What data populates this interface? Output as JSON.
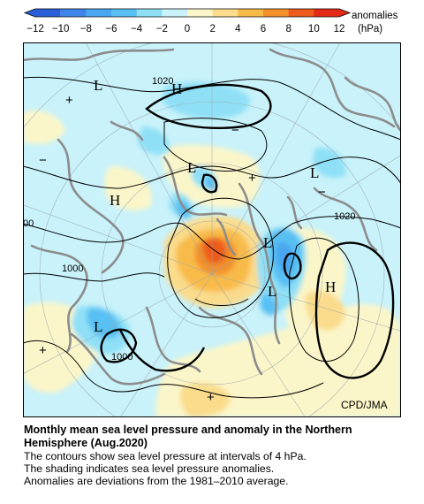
{
  "legend": {
    "ticks": [
      "−12",
      "−10",
      "−8",
      "−6",
      "−4",
      "−2",
      "0",
      "2",
      "4",
      "6",
      "8",
      "10",
      "12"
    ],
    "bins": [
      -12,
      -10,
      -8,
      -6,
      -4,
      -2,
      0,
      2,
      4,
      6,
      8,
      10,
      12
    ],
    "colors": [
      "#2a5fd9",
      "#3f85ea",
      "#49a6f0",
      "#58c0f3",
      "#8fe0f7",
      "#c9f2fa",
      "#fbf6c9",
      "#fadc8c",
      "#f8bb4a",
      "#f3902a",
      "#ed5b1d",
      "#e32b18"
    ],
    "label": "anomalies",
    "unit": "(hPa)"
  },
  "map": {
    "credit": "CPD/JMA",
    "pressure_labels": [
      "1020",
      "1020",
      "1000",
      "1000",
      "00"
    ],
    "systems": [
      {
        "symbol": "L"
      },
      {
        "symbol": "H"
      },
      {
        "symbol": "L"
      },
      {
        "symbol": "H"
      },
      {
        "symbol": "L"
      },
      {
        "symbol": "L"
      },
      {
        "symbol": "L"
      },
      {
        "symbol": "H"
      },
      {
        "symbol": "L"
      }
    ],
    "anomaly_signs": [
      "+",
      "+",
      "+",
      "+",
      "−",
      "−",
      "−"
    ]
  },
  "caption": {
    "title_line1": "Monthly mean sea level pressure and anomaly in the Northern",
    "title_line2": "Hemisphere (Aug.2020)",
    "line1": "The contours show sea level pressure at intervals of 4 hPa.",
    "line2": "The shading indicates sea level pressure anomalies.",
    "line3": "Anomalies are deviations from the 1981–2010 average."
  }
}
